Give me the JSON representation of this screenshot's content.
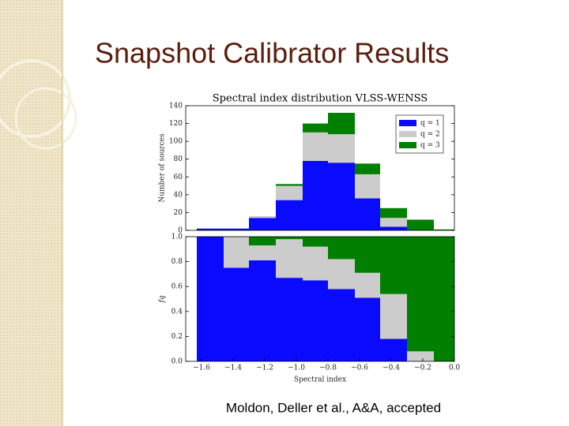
{
  "slide": {
    "title": "Snapshot Calibrator Results",
    "caption": "Moldon, Deller et al., A&A, accepted"
  },
  "chart_data": [
    {
      "type": "histogram",
      "title": "Spectral index distribution VLSS-WENSS",
      "ylabel": "Number of sources",
      "bins": [
        -1.63,
        -1.46,
        -1.3,
        -1.13,
        -0.96,
        -0.8,
        -0.63,
        -0.47,
        -0.3,
        -0.13,
        0.0
      ],
      "stacked": true,
      "legend": "upper right",
      "series": [
        {
          "name": "q = 1",
          "color": "#0a0aff",
          "values": [
            2,
            2,
            14,
            34,
            78,
            76,
            36,
            4,
            0,
            0
          ]
        },
        {
          "name": "q = 2",
          "color": "#cccccc",
          "values": [
            0,
            0,
            2,
            16,
            32,
            32,
            27,
            10,
            0,
            0
          ]
        },
        {
          "name": "q = 3",
          "color": "#007f00",
          "values": [
            0,
            0,
            0,
            2,
            10,
            24,
            12,
            11,
            12,
            1
          ]
        }
      ],
      "xlim": [
        -1.7,
        0.0
      ],
      "ylim": [
        0,
        140
      ],
      "yticks": [
        0,
        20,
        40,
        60,
        80,
        100,
        120,
        140
      ]
    },
    {
      "type": "histogram",
      "xlabel": "Spectral index",
      "ylabel": "fq",
      "bins": [
        -1.63,
        -1.46,
        -1.3,
        -1.13,
        -0.96,
        -0.8,
        -0.63,
        -0.47,
        -0.3,
        -0.13,
        0.0
      ],
      "stacked": true,
      "series": [
        {
          "color": "#0a0aff",
          "values": [
            1.0,
            0.75,
            0.81,
            0.67,
            0.65,
            0.58,
            0.51,
            0.18,
            0,
            0
          ]
        },
        {
          "color": "#cccccc",
          "values": [
            0,
            0.25,
            0.12,
            0.31,
            0.27,
            0.24,
            0.2,
            0.36,
            0.08,
            0
          ]
        },
        {
          "color": "#007f00",
          "values": [
            0,
            0,
            0.07,
            0.02,
            0.08,
            0.18,
            0.29,
            0.46,
            0.92,
            1.0
          ]
        }
      ],
      "xlim": [
        -1.7,
        0.0
      ],
      "ylim": [
        0,
        1.0
      ],
      "yticks": [
        {
          "value": 0,
          "label": "0.0"
        },
        {
          "value": 0.2,
          "label": "0.2"
        },
        {
          "value": 0.4,
          "label": "0.4"
        },
        {
          "value": 0.6,
          "label": "0.6"
        },
        {
          "value": 0.8,
          "label": "0.8"
        },
        {
          "value": 1.0,
          "label": "1.0"
        }
      ],
      "xticks": [
        {
          "value": -1.6,
          "label": "−1.6"
        },
        {
          "value": -1.4,
          "label": "−1.4"
        },
        {
          "value": -1.2,
          "label": "−1.2"
        },
        {
          "value": -1.0,
          "label": "−1.0"
        },
        {
          "value": -0.8,
          "label": "−0.8"
        },
        {
          "value": -0.6,
          "label": "−0.6"
        },
        {
          "value": -0.4,
          "label": "−0.4"
        },
        {
          "value": -0.2,
          "label": "−0.2"
        },
        {
          "value": 0.0,
          "label": "0.0"
        }
      ]
    }
  ]
}
